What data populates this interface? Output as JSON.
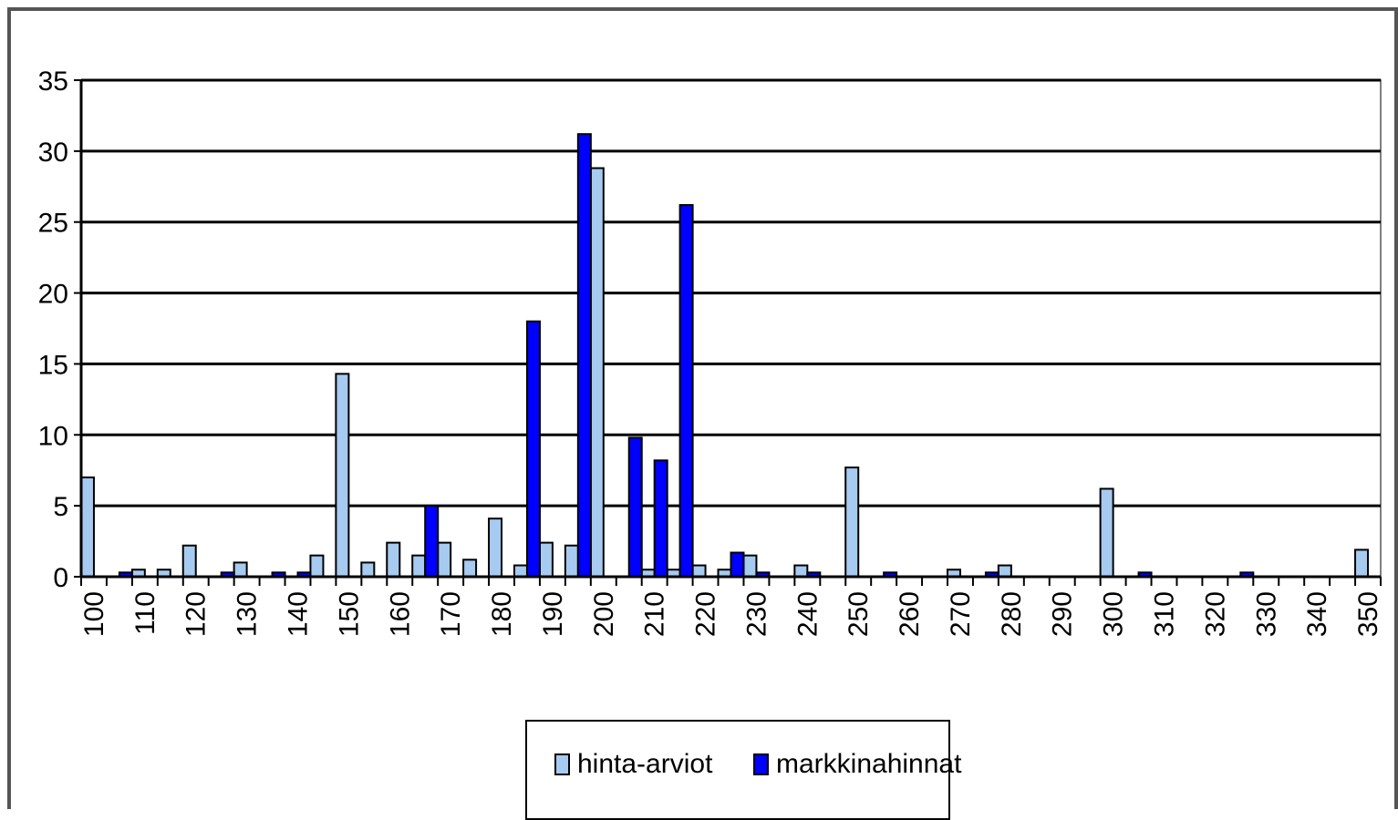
{
  "chart_data": {
    "type": "bar",
    "categories": [
      "100",
      "105",
      "110",
      "115",
      "120",
      "125",
      "130",
      "135",
      "140",
      "145",
      "150",
      "155",
      "160",
      "165",
      "170",
      "175",
      "180",
      "185",
      "190",
      "195",
      "200",
      "205",
      "210",
      "215",
      "220",
      "225",
      "230",
      "235",
      "240",
      "245",
      "250",
      "255",
      "260",
      "265",
      "270",
      "275",
      "280",
      "285",
      "290",
      "295",
      "300",
      "305",
      "310",
      "315",
      "320",
      "325",
      "330",
      "335",
      "340",
      "345",
      "350"
    ],
    "x_tick_labels": [
      "100",
      "",
      "110",
      "",
      "120",
      "",
      "130",
      "",
      "140",
      "",
      "150",
      "",
      "160",
      "",
      "170",
      "",
      "180",
      "",
      "190",
      "",
      "200",
      "",
      "210",
      "",
      "220",
      "",
      "230",
      "",
      "240",
      "",
      "250",
      "",
      "260",
      "",
      "270",
      "",
      "280",
      "",
      "290",
      "",
      "300",
      "",
      "310",
      "",
      "320",
      "",
      "330",
      "",
      "340",
      "",
      "350"
    ],
    "series": [
      {
        "name": "hinta-arviot",
        "color": "#a6caf0",
        "values": [
          7,
          0,
          0.5,
          0.5,
          2.2,
          0,
          1,
          0,
          0,
          1.5,
          14.3,
          1,
          2.4,
          1.5,
          2.4,
          1.2,
          4.1,
          0.8,
          2.4,
          2.2,
          28.8,
          0,
          0.5,
          0.5,
          0.8,
          0.5,
          1.5,
          0,
          0.8,
          0,
          7.7,
          0,
          0,
          0,
          0.5,
          0,
          0.8,
          0,
          0,
          0,
          6.2,
          0,
          0,
          0,
          0,
          0,
          0,
          0,
          0,
          0,
          1.9
        ]
      },
      {
        "name": "markkinahinnat",
        "color": "#0000ff",
        "values": [
          0,
          0.3,
          0,
          0,
          0,
          0.3,
          0,
          0.3,
          0.3,
          0,
          0,
          0,
          0,
          5,
          0,
          0,
          0,
          18,
          0,
          31.2,
          0,
          9.8,
          8.2,
          26.2,
          0,
          1.7,
          0.3,
          0,
          0.3,
          0,
          0,
          0.3,
          0,
          0,
          0,
          0.3,
          0,
          0,
          0,
          0,
          0,
          0.3,
          0,
          0,
          0,
          0.3,
          0,
          0,
          0,
          0,
          0
        ]
      }
    ],
    "y_ticks": [
      "0",
      "5",
      "10",
      "15",
      "20",
      "25",
      "30",
      "35"
    ],
    "ylim": [
      0,
      35
    ],
    "grid": true,
    "legend_position": "bottom"
  }
}
